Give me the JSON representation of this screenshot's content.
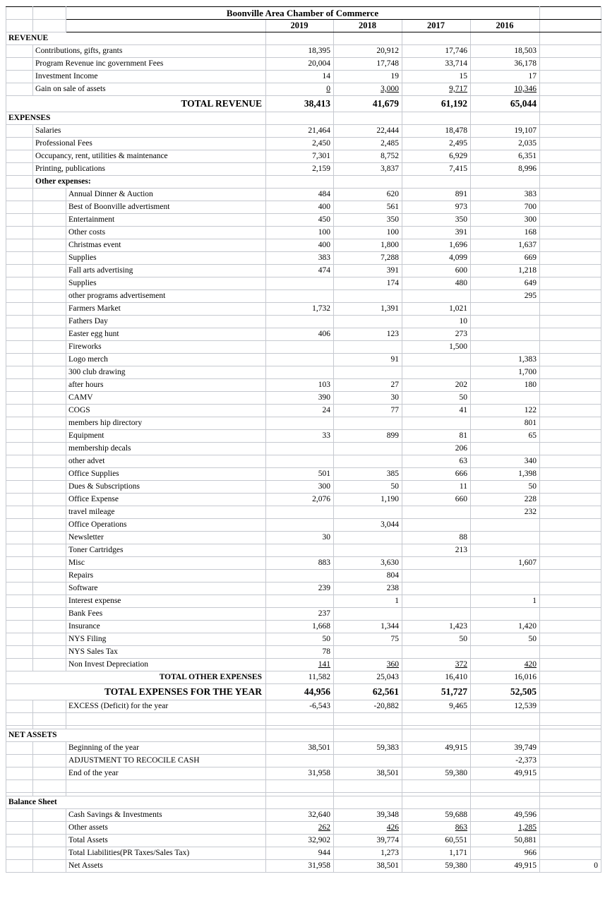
{
  "title": "Boonville Area Chamber of Commerce",
  "years": [
    "2019",
    "2018",
    "2017",
    "2016"
  ],
  "colors": {
    "grid_line": "#c6c9d0",
    "header_line": "#000000",
    "text": "#000000",
    "background": "#ffffff"
  },
  "rows": [
    {
      "level": 0,
      "label": "REVENUE",
      "bold": true,
      "values": [
        "",
        "",
        "",
        ""
      ]
    },
    {
      "level": 1,
      "label": "Contributions, gifts, grants",
      "values": [
        "18,395",
        "20,912",
        "17,746",
        "18,503"
      ]
    },
    {
      "level": 1,
      "label": "Program Revenue inc government Fees",
      "values": [
        "20,004",
        "17,748",
        "33,714",
        "36,178"
      ]
    },
    {
      "level": 1,
      "label": "Investment Income",
      "values": [
        "14",
        "19",
        "15",
        "17"
      ]
    },
    {
      "level": 1,
      "label": "Gain on sale of assets",
      "values": [
        "0",
        "3,000",
        "9,717",
        "10,346"
      ],
      "underline": true
    },
    {
      "level": 0,
      "label": "TOTAL REVENUE",
      "bold": true,
      "align": "right",
      "big": true,
      "values": [
        "38,413",
        "41,679",
        "61,192",
        "65,044"
      ]
    },
    {
      "level": 0,
      "label": "EXPENSES",
      "bold": true,
      "values": [
        "",
        "",
        "",
        ""
      ]
    },
    {
      "level": 1,
      "label": "Salaries",
      "values": [
        "21,464",
        "22,444",
        "18,478",
        "19,107"
      ]
    },
    {
      "level": 1,
      "label": "Professional Fees",
      "values": [
        "2,450",
        "2,485",
        "2,495",
        "2,035"
      ]
    },
    {
      "level": 1,
      "label": "Occupancy, rent, utilities & maintenance",
      "values": [
        "7,301",
        "8,752",
        "6,929",
        "6,351"
      ]
    },
    {
      "level": 1,
      "label": "Printing, publications",
      "values": [
        "2,159",
        "3,837",
        "7,415",
        "8,996"
      ]
    },
    {
      "level": 1,
      "label": "Other expenses:",
      "bold": true,
      "values": [
        "",
        "",
        "",
        ""
      ]
    },
    {
      "level": 2,
      "label": "Annual Dinner & Auction",
      "values": [
        "484",
        "620",
        "891",
        "383"
      ]
    },
    {
      "level": 2,
      "label": "Best of Boonville advertisment",
      "values": [
        "400",
        "561",
        "973",
        "700"
      ]
    },
    {
      "level": 2,
      "label": "Entertainment",
      "values": [
        "450",
        "350",
        "350",
        "300"
      ]
    },
    {
      "level": 2,
      "label": "Other costs",
      "values": [
        "100",
        "100",
        "391",
        "168"
      ]
    },
    {
      "level": 2,
      "label": "Christmas event",
      "values": [
        "400",
        "1,800",
        "1,696",
        "1,637"
      ]
    },
    {
      "level": 2,
      "label": "Supplies",
      "values": [
        "383",
        "7,288",
        "4,099",
        "669"
      ]
    },
    {
      "level": 2,
      "label": "Fall arts advertising",
      "values": [
        "474",
        "391",
        "600",
        "1,218"
      ]
    },
    {
      "level": 2,
      "label": "Supplies",
      "values": [
        "",
        "174",
        "480",
        "649"
      ]
    },
    {
      "level": 2,
      "label": "other programs advertisement",
      "values": [
        "",
        "",
        "",
        "295"
      ]
    },
    {
      "level": 2,
      "label": "Farmers Market",
      "values": [
        "1,732",
        "1,391",
        "1,021",
        ""
      ]
    },
    {
      "level": 2,
      "label": "Fathers Day",
      "values": [
        "",
        "",
        "10",
        ""
      ]
    },
    {
      "level": 2,
      "label": "Easter egg hunt",
      "values": [
        "406",
        "123",
        "273",
        ""
      ]
    },
    {
      "level": 2,
      "label": "Fireworks",
      "values": [
        "",
        "",
        "1,500",
        ""
      ]
    },
    {
      "level": 2,
      "label": "Logo merch",
      "values": [
        "",
        "91",
        "",
        "1,383"
      ]
    },
    {
      "level": 2,
      "label": "300 club drawing",
      "values": [
        "",
        "",
        "",
        "1,700"
      ]
    },
    {
      "level": 2,
      "label": "after hours",
      "values": [
        "103",
        "27",
        "202",
        "180"
      ]
    },
    {
      "level": 2,
      "label": "CAMV",
      "values": [
        "390",
        "30",
        "50",
        ""
      ]
    },
    {
      "level": 2,
      "label": "COGS",
      "values": [
        "24",
        "77",
        "41",
        "122"
      ]
    },
    {
      "level": 2,
      "label": "members hip directory",
      "values": [
        "",
        "",
        "",
        "801"
      ]
    },
    {
      "level": 2,
      "label": "Equipment",
      "values": [
        "33",
        "899",
        "81",
        "65"
      ]
    },
    {
      "level": 2,
      "label": "membership decals",
      "values": [
        "",
        "",
        "206",
        ""
      ]
    },
    {
      "level": 2,
      "label": "other advet",
      "values": [
        "",
        "",
        "63",
        "340"
      ]
    },
    {
      "level": 2,
      "label": "Office Supplies",
      "values": [
        "501",
        "385",
        "666",
        "1,398"
      ]
    },
    {
      "level": 2,
      "label": "Dues & Subscriptions",
      "values": [
        "300",
        "50",
        "11",
        "50"
      ]
    },
    {
      "level": 2,
      "label": "Office Expense",
      "values": [
        "2,076",
        "1,190",
        "660",
        "228"
      ]
    },
    {
      "level": 2,
      "label": "travel mileage",
      "values": [
        "",
        "",
        "",
        "232"
      ]
    },
    {
      "level": 2,
      "label": "Office Operations",
      "values": [
        "",
        "3,044",
        "",
        ""
      ]
    },
    {
      "level": 2,
      "label": "Newsletter",
      "values": [
        "30",
        "",
        "88",
        ""
      ]
    },
    {
      "level": 2,
      "label": "Toner Cartridges",
      "values": [
        "",
        "",
        "213",
        ""
      ]
    },
    {
      "level": 2,
      "label": "Misc",
      "values": [
        "883",
        "3,630",
        "",
        "1,607"
      ]
    },
    {
      "level": 2,
      "label": "Repairs",
      "values": [
        "",
        "804",
        "",
        ""
      ]
    },
    {
      "level": 2,
      "label": "Software",
      "values": [
        "239",
        "238",
        "",
        ""
      ]
    },
    {
      "level": 2,
      "label": "Interest expense",
      "values": [
        "",
        "1",
        "",
        "1"
      ]
    },
    {
      "level": 2,
      "label": "Bank Fees",
      "values": [
        "237",
        "",
        "",
        ""
      ]
    },
    {
      "level": 2,
      "label": "Insurance",
      "values": [
        "1,668",
        "1,344",
        "1,423",
        "1,420"
      ]
    },
    {
      "level": 2,
      "label": "NYS Filing",
      "values": [
        "50",
        "75",
        "50",
        "50"
      ]
    },
    {
      "level": 2,
      "label": "NYS Sales Tax",
      "values": [
        "78",
        "",
        "",
        ""
      ]
    },
    {
      "level": 2,
      "label": "Non Invest Depreciation",
      "values": [
        "141",
        "360",
        "372",
        "420"
      ],
      "underline": true
    },
    {
      "level": 0,
      "label": "TOTAL OTHER EXPENSES",
      "bold": true,
      "align": "right",
      "values": [
        "11,582",
        "25,043",
        "16,410",
        "16,016"
      ]
    },
    {
      "level": 0,
      "label": "TOTAL EXPENSES FOR THE YEAR",
      "bold": true,
      "align": "right",
      "big": true,
      "values": [
        "44,956",
        "62,561",
        "51,727",
        "52,505"
      ]
    },
    {
      "level": 2,
      "label": "EXCESS (Deficit) for the year",
      "values": [
        "-6,543",
        "-20,882",
        "9,465",
        "12,539"
      ]
    },
    {
      "level": 2,
      "label": "",
      "values": [
        "",
        "",
        "",
        ""
      ]
    },
    {
      "level": 2,
      "label": "",
      "values": [
        "",
        "",
        "",
        ""
      ],
      "spacer": true
    },
    {
      "level": 0,
      "label": "NET ASSETS",
      "bold": true,
      "values": [
        "",
        "",
        "",
        ""
      ]
    },
    {
      "level": 2,
      "label": "Beginning of the year",
      "values": [
        "38,501",
        "59,383",
        "49,915",
        "39,749"
      ]
    },
    {
      "level": 2,
      "label": "ADJUSTMENT TO RECOCILE CASH",
      "values": [
        "",
        "",
        "",
        "-2,373"
      ]
    },
    {
      "level": 2,
      "label": "End of the year",
      "values": [
        "31,958",
        "38,501",
        "59,380",
        "49,915"
      ]
    },
    {
      "level": 2,
      "label": "",
      "values": [
        "",
        "",
        "",
        ""
      ]
    },
    {
      "level": 2,
      "label": "",
      "values": [
        "",
        "",
        "",
        ""
      ],
      "spacer": true
    },
    {
      "level": 0,
      "label": "Balance Sheet",
      "bold": true,
      "values": [
        "",
        "",
        "",
        ""
      ]
    },
    {
      "level": 2,
      "label": "Cash Savings & Investments",
      "values": [
        "32,640",
        "39,348",
        "59,688",
        "49,596"
      ]
    },
    {
      "level": 2,
      "label": "Other assets",
      "values": [
        "262",
        "426",
        "863",
        "1,285"
      ],
      "underline": true
    },
    {
      "level": 2,
      "label": "Total Assets",
      "values": [
        "32,902",
        "39,774",
        "60,551",
        "50,881"
      ]
    },
    {
      "level": 2,
      "label": "Total Liabilities(PR Taxes/Sales Tax)",
      "values": [
        "944",
        "1,273",
        "1,171",
        "966"
      ]
    },
    {
      "level": 2,
      "label": "Net Assets",
      "values": [
        "31,958",
        "38,501",
        "59,380",
        "49,915"
      ],
      "extra": "0"
    }
  ]
}
